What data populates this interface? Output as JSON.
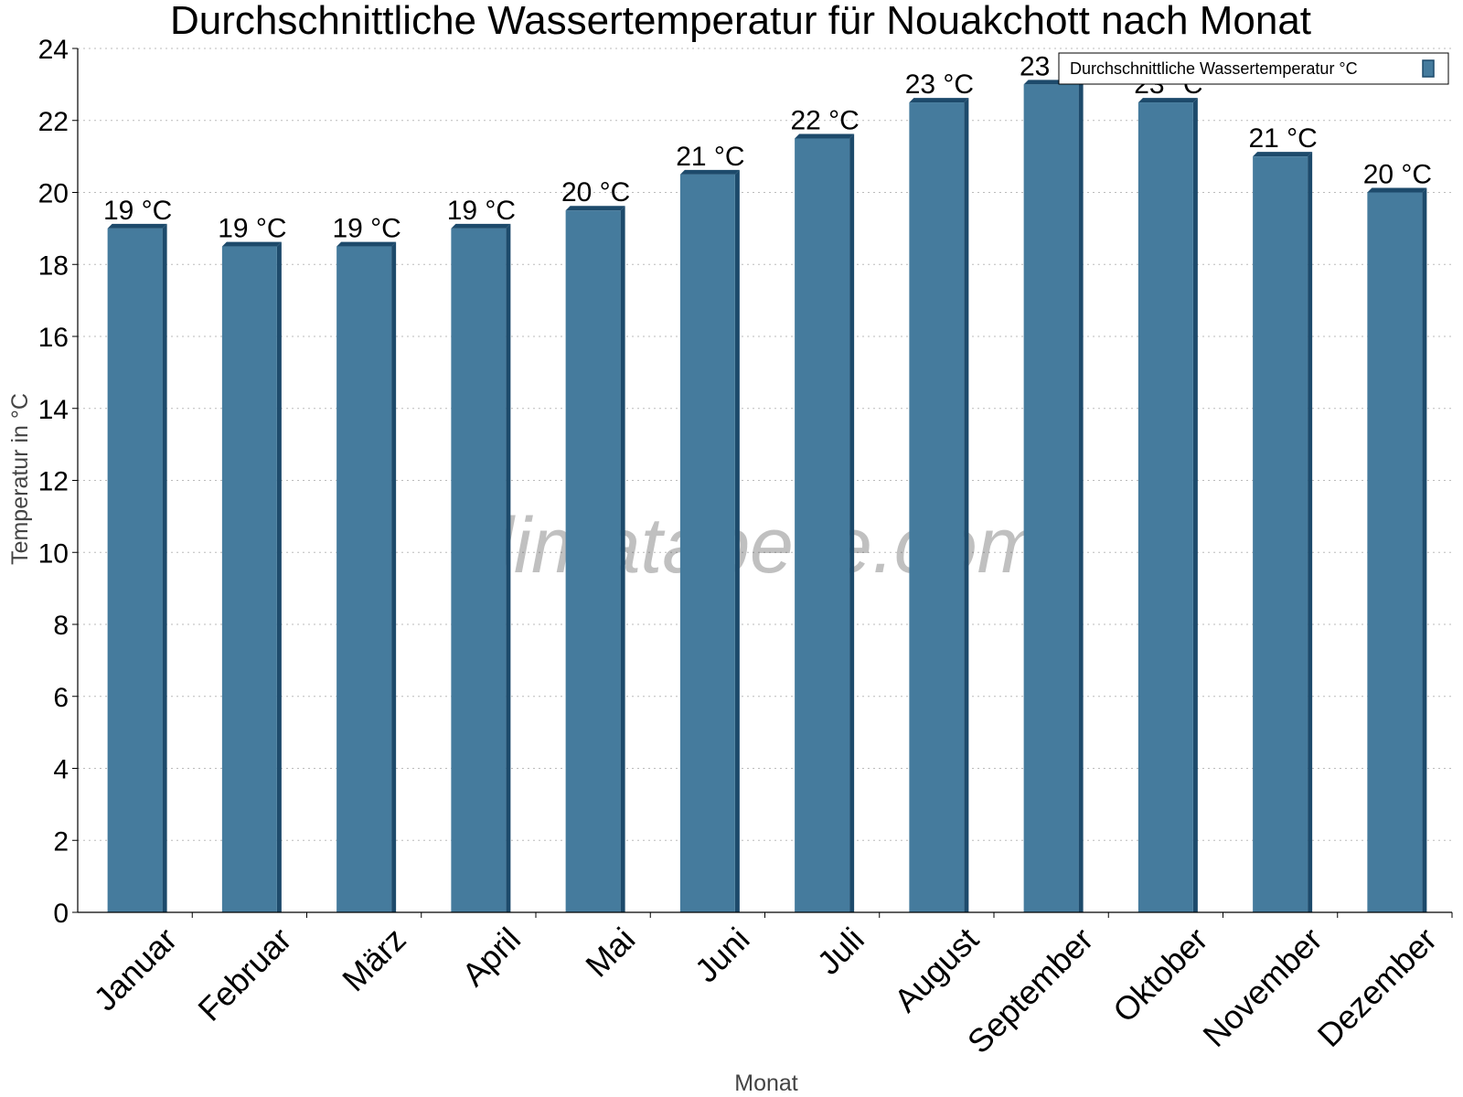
{
  "chart_data": {
    "type": "bar",
    "title": "Durchschnittliche Wassertemperatur für Nouakchott nach Monat",
    "xlabel": "Monat",
    "ylabel": "Temperatur in °C",
    "ylim": [
      0,
      24
    ],
    "yticks": [
      0,
      2,
      4,
      6,
      8,
      10,
      12,
      14,
      16,
      18,
      20,
      22,
      24
    ],
    "grid": true,
    "legend_position": "top-right",
    "categories": [
      "Januar",
      "Februar",
      "März",
      "April",
      "Mai",
      "Juni",
      "Juli",
      "August",
      "September",
      "Oktober",
      "November",
      "Dezember"
    ],
    "series": [
      {
        "name": "Durchschnittliche Wassertemperatur °C",
        "values": [
          19.0,
          18.5,
          18.5,
          19.0,
          19.5,
          20.5,
          21.5,
          22.5,
          23.0,
          22.5,
          21.0,
          20.0
        ],
        "labels": [
          "19 °C",
          "19 °C",
          "19 °C",
          "19 °C",
          "20 °C",
          "21 °C",
          "22 °C",
          "23 °C",
          "23 °C",
          "23 °C",
          "21 °C",
          "20 °C"
        ],
        "color": "#457b9d",
        "edge_color": "#1d4a6b"
      }
    ],
    "watermark": "klimatabelle.com"
  }
}
